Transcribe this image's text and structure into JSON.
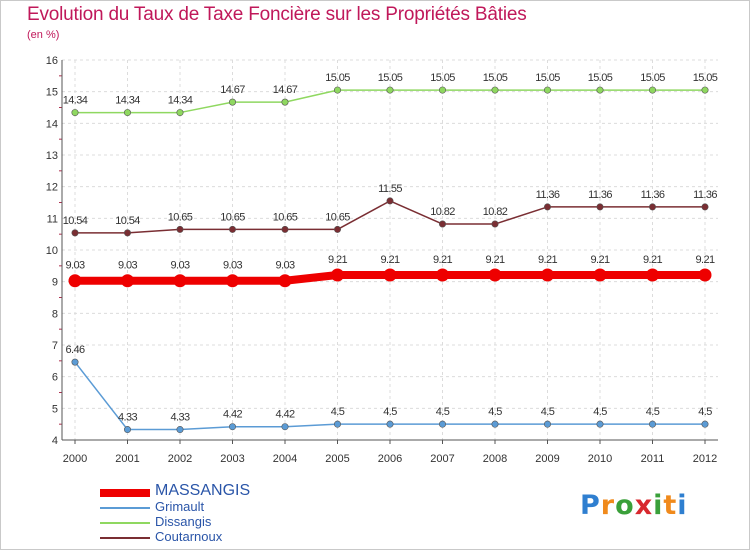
{
  "title": "Evolution du Taux de Taxe Foncière sur les Propriétés Bâties",
  "subtitle": "(en %)",
  "logo": {
    "letters": [
      "P",
      "r",
      "o",
      "x",
      "i",
      "t",
      "i"
    ],
    "colors": [
      "#2f7fd0",
      "#f08a1c",
      "#3aa03a",
      "#d8282e",
      "#3aa03a",
      "#f08a1c",
      "#2f7fd0"
    ]
  },
  "chart_data": {
    "type": "line",
    "x": [
      "2000",
      "2001",
      "2002",
      "2003",
      "2004",
      "2005",
      "2006",
      "2007",
      "2008",
      "2009",
      "2010",
      "2011",
      "2012"
    ],
    "ylim": [
      4,
      16
    ],
    "yticks": [
      "4",
      "5",
      "6",
      "7",
      "8",
      "9",
      "10",
      "11",
      "12",
      "13",
      "14",
      "15",
      "16"
    ],
    "grid": true,
    "legend_position": "bottom-left",
    "series": [
      {
        "name": "MASSANGIS",
        "color": "#ee0000",
        "bold": true,
        "values": [
          9.03,
          9.03,
          9.03,
          9.03,
          9.03,
          9.21,
          9.21,
          9.21,
          9.21,
          9.21,
          9.21,
          9.21,
          9.21
        ],
        "labels": [
          "9.03",
          "9.03",
          "9.03",
          "9.03",
          "9.03",
          "9.21",
          "9.21",
          "9.21",
          "9.21",
          "9.21",
          "9.21",
          "9.21",
          "9.21"
        ]
      },
      {
        "name": "Grimault",
        "color": "#5b9bd5",
        "bold": false,
        "values": [
          6.46,
          4.33,
          4.33,
          4.42,
          4.42,
          4.5,
          4.5,
          4.5,
          4.5,
          4.5,
          4.5,
          4.5,
          4.5
        ],
        "labels": [
          "6.46",
          "4.33",
          "4.33",
          "4.42",
          "4.42",
          "4.5",
          "4.5",
          "4.5",
          "4.5",
          "4.5",
          "4.5",
          "4.5",
          "4.5"
        ]
      },
      {
        "name": "Dissangis",
        "color": "#8fd860",
        "bold": false,
        "values": [
          14.34,
          14.34,
          14.34,
          14.67,
          14.67,
          15.05,
          15.05,
          15.05,
          15.05,
          15.05,
          15.05,
          15.05,
          15.05
        ],
        "labels": [
          "14.34",
          "14.34",
          "14.34",
          "14.67",
          "14.67",
          "15.05",
          "15.05",
          "15.05",
          "15.05",
          "15.05",
          "15.05",
          "15.05",
          "15.05"
        ]
      },
      {
        "name": "Coutarnoux",
        "color": "#7a2e33",
        "bold": false,
        "values": [
          10.54,
          10.54,
          10.65,
          10.65,
          10.65,
          10.65,
          11.55,
          10.82,
          10.82,
          11.36,
          11.36,
          11.36,
          11.36
        ],
        "labels": [
          "10.54",
          "10.54",
          "10.65",
          "10.65",
          "10.65",
          "10.65",
          "11.55",
          "10.82",
          "10.82",
          "11.36",
          "11.36",
          "11.36",
          "11.36"
        ]
      }
    ]
  }
}
